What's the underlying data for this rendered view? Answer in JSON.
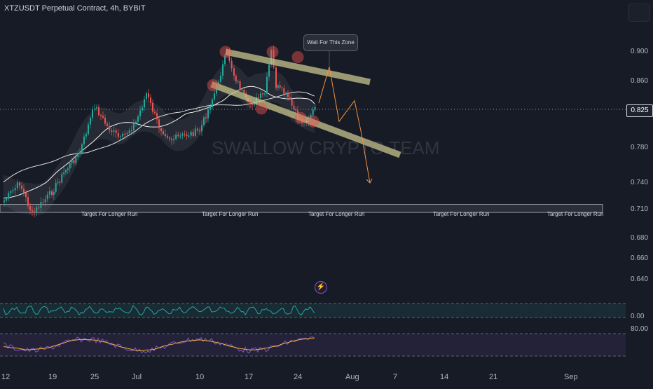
{
  "header": {
    "title": "XTZUSDT Perpetual Contract, 4h, BYBIT"
  },
  "annotations": {
    "callout": "Wait For This Zone",
    "target_label": "Target For Longer Run",
    "watermark": "SWALLOW CRYPTO TEAM"
  },
  "chart_data": {
    "type": "candlestick",
    "symbol": "XTZUSDT",
    "interval": "4h",
    "exchange": "BYBIT",
    "current_price": "0.825",
    "y_tick_labels": [
      "0.900",
      "0.860",
      "0.825",
      "0.780",
      "0.740",
      "0.710",
      "0.680",
      "0.660",
      "0.640"
    ],
    "x_tick_labels": [
      "12",
      "19",
      "25",
      "Jul",
      "10",
      "17",
      "24",
      "Aug",
      "7",
      "14",
      "21",
      "Sep"
    ],
    "close_path": [
      [
        "12",
        0.72
      ],
      [
        "14",
        0.74
      ],
      [
        "16",
        0.705
      ],
      [
        "19",
        0.73
      ],
      [
        "21",
        0.755
      ],
      [
        "23",
        0.775
      ],
      [
        "25",
        0.83
      ],
      [
        "27",
        0.805
      ],
      [
        "29",
        0.79
      ],
      [
        "Jul",
        0.81
      ],
      [
        "3",
        0.845
      ],
      [
        "5",
        0.805
      ],
      [
        "7",
        0.79
      ],
      [
        "10",
        0.8
      ],
      [
        "12",
        0.845
      ],
      [
        "14",
        0.905
      ],
      [
        "15",
        0.87
      ],
      [
        "17",
        0.83
      ],
      [
        "19",
        0.845
      ],
      [
        "20",
        0.905
      ],
      [
        "21",
        0.855
      ],
      [
        "23",
        0.84
      ],
      [
        "24",
        0.815
      ],
      [
        "25",
        0.81
      ],
      [
        "27",
        0.83
      ]
    ],
    "projection_path": [
      [
        "27",
        0.83
      ],
      [
        "28",
        0.88
      ],
      [
        "29",
        0.81
      ],
      [
        "31",
        0.835
      ],
      [
        "Aug",
        0.8
      ],
      [
        "3",
        0.74
      ]
    ],
    "target_level": 0.712,
    "indicators": {
      "oscillator_1": {
        "level_label": "0.00",
        "band_color": "#26a69a"
      },
      "oscillator_2": {
        "level_label": "80.00",
        "band_color": "#7e57c2",
        "signal_color": "#f5b03c"
      }
    },
    "colors": {
      "up": "#26a69a",
      "down": "#ef5350",
      "channel": "#c6c48a",
      "projection": "#f5913c"
    }
  }
}
